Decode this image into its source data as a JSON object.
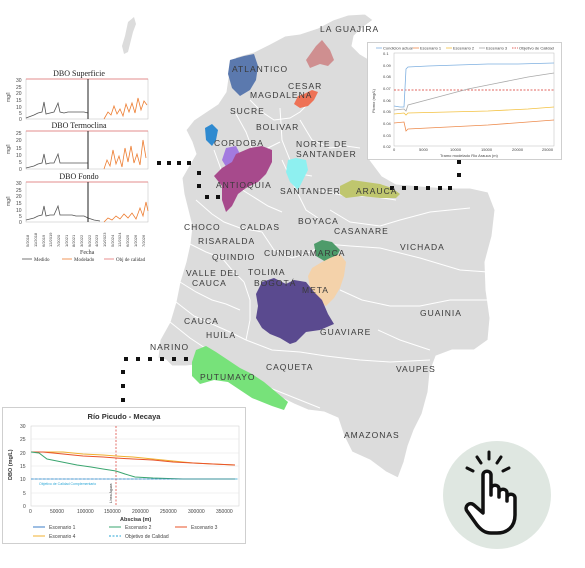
{
  "map": {
    "colors": {
      "country": "#dcdcdc",
      "border": "#ffffff",
      "highlight": {
        "atlantico": "#5b79ae",
        "la_guajira": "#cf8f90",
        "cesar": "#ee7256",
        "cordoba": "#2f8ad0",
        "antioquia": "#a74a8c",
        "antioquia_north": "#a37be0",
        "santander": "#8ef0f0",
        "arauca": "#bfc66e",
        "cundinamarca": "#4e9b6a",
        "meta": "#f4d2aa",
        "bogota": "#5a4a8f",
        "putumayo": "#77e27a"
      }
    },
    "departments": {
      "la_guajira": "LA GUAJIRA",
      "atlantico": "ATLANTICO",
      "magdalena": "MAGDALENA",
      "cesar": "CESAR",
      "sucre": "SUCRE",
      "bolivar": "BOLIVAR",
      "cordoba": "CORDOBA",
      "norte_santander_1": "NORTE DE",
      "norte_santander_2": "SANTANDER",
      "antioquia": "ANTIOQUIA",
      "santander": "SANTANDER",
      "arauca": "ARAUCA",
      "boyaca": "BOYACA",
      "choco": "CHOCO",
      "caldas": "CALDAS",
      "casanare": "CASANARE",
      "risaralda": "RISARALDA",
      "cundinamarca": "CUNDINAMARCA",
      "vichada": "VICHADA",
      "quindio": "QUINDIO",
      "valle_1": "VALLE DEL",
      "valle_2": "CAUCA",
      "tolima": "TOLIMA",
      "bogota": "BOGOTÁ",
      "meta": "META",
      "guainia": "GUAINIA",
      "cauca": "CAUCA",
      "huila": "HUILA",
      "guaviare": "GUAVIARE",
      "narino": "NARINO",
      "putumayo": "PUTUMAYO",
      "caqueta": "CAQUETA",
      "vaupes": "VAUPES",
      "amazonas": "AMAZONAS"
    }
  },
  "dbo_panels": {
    "line_colors": {
      "medido": "#555555",
      "modelado": "#ed7d31",
      "objetivo": "#e57373"
    },
    "y_axis_label": "mg/l",
    "charts": [
      {
        "title": "DBO Superficie",
        "yticks": [
          "30",
          "25",
          "20",
          "15",
          "10",
          "5",
          "0"
        ]
      },
      {
        "title": "DBO Termoclina",
        "yticks": [
          "25",
          "20",
          "15",
          "10",
          "5",
          "0"
        ]
      },
      {
        "title": "DBO Fondo",
        "yticks": [
          "30",
          "25",
          "20",
          "15",
          "10",
          "5",
          "0"
        ]
      }
    ],
    "x_ticks": [
      "5/2018",
      "11/2018",
      "6/2019",
      "12/2019",
      "7/2020",
      "1/2021",
      "8/2021",
      "3/2022",
      "9/2022",
      "4/2023",
      "10/2023",
      "5/2024",
      "12/2024",
      "6/2025",
      "1/2026",
      "7/2026"
    ],
    "x_label": "Fecha",
    "legend": [
      "Medido",
      "Modelado",
      "Obj de calidad"
    ]
  },
  "arauca_chart": {
    "y_label": "Plomo (mg/L)",
    "x_label": "Tramo modelado Rio Arauca (m)",
    "y_ticks": [
      "0.1",
      "0.09",
      "0.08",
      "0.07",
      "0.06",
      "0.05",
      "0.04",
      "0.03",
      "0.02"
    ],
    "x_ticks": [
      "0",
      "5000",
      "10000",
      "15000",
      "20000",
      "25000"
    ],
    "legend": [
      "Condicion actual",
      "Escenario 1",
      "Escenario 2",
      "Escenario 3",
      "Objetivo de Calidad"
    ],
    "colors": {
      "actual": "#7fb0e0",
      "esc1": "#ed8b4d",
      "esc2": "#f3c242",
      "esc3": "#a9a9a9",
      "objetivo": "#d9342b"
    }
  },
  "picudo_chart": {
    "title": "Río Picudo - Mecaya",
    "y_label": "DBO (mg/L)",
    "x_label": "Abscisa (m)",
    "y_ticks": [
      "30",
      "25",
      "20",
      "15",
      "10",
      "5",
      "0"
    ],
    "x_ticks": [
      "0",
      "50000",
      "100000",
      "150000",
      "200000",
      "250000",
      "300000",
      "350000"
    ],
    "annotation_objetivo": "Objetivo de Calidad Complementario",
    "annotation_vertical": "Línea Aguas",
    "legend": [
      "Escenario 1",
      "Escenario 2",
      "Escenario 3",
      "Escenario 4",
      "Objetivo de Calidad"
    ],
    "colors": {
      "esc1": "#3b7ec7",
      "esc2": "#3aa56f",
      "esc3": "#e8532a",
      "esc4": "#f0b030",
      "objetivo": "#2aa6d6"
    }
  },
  "touch_icon": {
    "name": "tap-gesture"
  }
}
